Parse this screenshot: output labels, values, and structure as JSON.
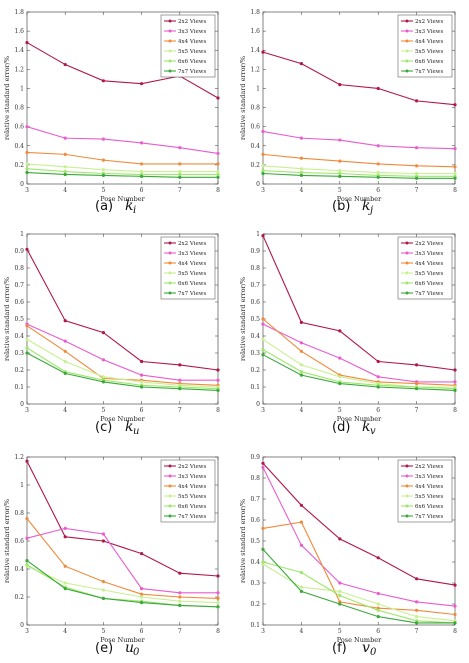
{
  "series_names": [
    "2x2 Views",
    "3x3 Views",
    "4x4 Views",
    "5x5 Views",
    "6x6 Views",
    "7x7 Views"
  ],
  "colors": [
    "#b0174a",
    "#e85cd0",
    "#f08a3a",
    "#c8f090",
    "#9be86a",
    "#3aa83a"
  ],
  "chart_data": [
    {
      "type": "line",
      "caption": "(a)",
      "caption_var": "k",
      "caption_sub": "i",
      "xlabel": "Pose Number",
      "ylabel": "relative standard error/%",
      "xlim": [
        3,
        8
      ],
      "ylim": [
        0,
        1.8
      ],
      "xticks": [
        3,
        4,
        5,
        6,
        7,
        8
      ],
      "yticks": [
        0,
        0.2,
        0.4,
        0.6,
        0.8,
        1,
        1.2,
        1.4,
        1.6,
        1.8
      ],
      "x": [
        3,
        4,
        5,
        6,
        7,
        8
      ],
      "series": [
        {
          "name": "2x2 Views",
          "values": [
            1.48,
            1.25,
            1.08,
            1.05,
            1.13,
            0.9
          ]
        },
        {
          "name": "3x3 Views",
          "values": [
            0.6,
            0.48,
            0.47,
            0.43,
            0.38,
            0.32
          ]
        },
        {
          "name": "4x4 Views",
          "values": [
            0.33,
            0.31,
            0.25,
            0.21,
            0.21,
            0.21
          ]
        },
        {
          "name": "5x5 Views",
          "values": [
            0.21,
            0.18,
            0.15,
            0.13,
            0.13,
            0.13
          ]
        },
        {
          "name": "6x6 Views",
          "values": [
            0.16,
            0.13,
            0.11,
            0.1,
            0.1,
            0.1
          ]
        },
        {
          "name": "7x7 Views",
          "values": [
            0.12,
            0.1,
            0.09,
            0.08,
            0.07,
            0.07
          ]
        }
      ]
    },
    {
      "type": "line",
      "caption": "(b)",
      "caption_var": "k",
      "caption_sub": "j",
      "xlabel": "Pose Number",
      "ylabel": "relative standard error/%",
      "xlim": [
        3,
        8
      ],
      "ylim": [
        0,
        1.8
      ],
      "xticks": [
        3,
        4,
        5,
        6,
        7,
        8
      ],
      "yticks": [
        0,
        0.2,
        0.4,
        0.6,
        0.8,
        1,
        1.2,
        1.4,
        1.6,
        1.8
      ],
      "x": [
        3,
        4,
        5,
        6,
        7,
        8
      ],
      "series": [
        {
          "name": "2x2 Views",
          "values": [
            1.38,
            1.26,
            1.04,
            1.0,
            0.87,
            0.83
          ]
        },
        {
          "name": "3x3 Views",
          "values": [
            0.55,
            0.48,
            0.46,
            0.4,
            0.38,
            0.37
          ]
        },
        {
          "name": "4x4 Views",
          "values": [
            0.31,
            0.27,
            0.24,
            0.21,
            0.19,
            0.18
          ]
        },
        {
          "name": "5x5 Views",
          "values": [
            0.19,
            0.16,
            0.14,
            0.12,
            0.11,
            0.11
          ]
        },
        {
          "name": "6x6 Views",
          "values": [
            0.14,
            0.12,
            0.11,
            0.09,
            0.08,
            0.08
          ]
        },
        {
          "name": "7x7 Views",
          "values": [
            0.11,
            0.09,
            0.08,
            0.07,
            0.06,
            0.06
          ]
        }
      ]
    },
    {
      "type": "line",
      "caption": "(c)",
      "caption_var": "k",
      "caption_sub": "u",
      "xlabel": "Pose Number",
      "ylabel": "relative standard error/%",
      "xlim": [
        3,
        8
      ],
      "ylim": [
        0,
        1
      ],
      "xticks": [
        3,
        4,
        5,
        6,
        7,
        8
      ],
      "yticks": [
        0,
        0.1,
        0.2,
        0.3,
        0.4,
        0.5,
        0.6,
        0.7,
        0.8,
        0.9,
        1
      ],
      "x": [
        3,
        4,
        5,
        6,
        7,
        8
      ],
      "series": [
        {
          "name": "2x2 Views",
          "values": [
            0.91,
            0.49,
            0.42,
            0.25,
            0.23,
            0.2
          ]
        },
        {
          "name": "3x3 Views",
          "values": [
            0.47,
            0.37,
            0.26,
            0.17,
            0.14,
            0.14
          ]
        },
        {
          "name": "4x4 Views",
          "values": [
            0.46,
            0.31,
            0.15,
            0.14,
            0.12,
            0.11
          ]
        },
        {
          "name": "5x5 Views",
          "values": [
            0.38,
            0.25,
            0.16,
            0.13,
            0.11,
            0.1
          ]
        },
        {
          "name": "6x6 Views",
          "values": [
            0.33,
            0.19,
            0.14,
            0.11,
            0.1,
            0.09
          ]
        },
        {
          "name": "7x7 Views",
          "values": [
            0.3,
            0.18,
            0.13,
            0.1,
            0.09,
            0.08
          ]
        }
      ]
    },
    {
      "type": "line",
      "caption": "(d)",
      "caption_var": "k",
      "caption_sub": "v",
      "xlabel": "Pose Number",
      "ylabel": "relative standard error/%",
      "xlim": [
        3,
        8
      ],
      "ylim": [
        0,
        1
      ],
      "xticks": [
        3,
        4,
        5,
        6,
        7,
        8
      ],
      "yticks": [
        0,
        0.1,
        0.2,
        0.3,
        0.4,
        0.5,
        0.6,
        0.7,
        0.8,
        0.9,
        1
      ],
      "x": [
        3,
        4,
        5,
        6,
        7,
        8
      ],
      "series": [
        {
          "name": "2x2 Views",
          "values": [
            0.99,
            0.48,
            0.43,
            0.25,
            0.23,
            0.2
          ]
        },
        {
          "name": "3x3 Views",
          "values": [
            0.47,
            0.36,
            0.27,
            0.16,
            0.13,
            0.13
          ]
        },
        {
          "name": "4x4 Views",
          "values": [
            0.5,
            0.31,
            0.17,
            0.13,
            0.12,
            0.11
          ]
        },
        {
          "name": "5x5 Views",
          "values": [
            0.38,
            0.23,
            0.16,
            0.12,
            0.1,
            0.1
          ]
        },
        {
          "name": "6x6 Views",
          "values": [
            0.32,
            0.19,
            0.13,
            0.11,
            0.1,
            0.09
          ]
        },
        {
          "name": "7x7 Views",
          "values": [
            0.29,
            0.17,
            0.12,
            0.1,
            0.09,
            0.08
          ]
        }
      ]
    },
    {
      "type": "line",
      "caption": "(e)",
      "caption_var": "u",
      "caption_sub": "0",
      "xlabel": "Pose Number",
      "ylabel": "relative standard error/%",
      "xlim": [
        3,
        8
      ],
      "ylim": [
        0,
        1.2
      ],
      "xticks": [
        3,
        4,
        5,
        6,
        7,
        8
      ],
      "yticks": [
        0,
        0.2,
        0.4,
        0.6,
        0.8,
        1,
        1.2
      ],
      "x": [
        3,
        4,
        5,
        6,
        7,
        8
      ],
      "series": [
        {
          "name": "2x2 Views",
          "values": [
            1.17,
            0.63,
            0.6,
            0.51,
            0.37,
            0.35
          ]
        },
        {
          "name": "3x3 Views",
          "values": [
            0.62,
            0.69,
            0.65,
            0.26,
            0.23,
            0.23
          ]
        },
        {
          "name": "4x4 Views",
          "values": [
            0.76,
            0.42,
            0.31,
            0.22,
            0.2,
            0.19
          ]
        },
        {
          "name": "5x5 Views",
          "values": [
            0.42,
            0.3,
            0.25,
            0.2,
            0.17,
            0.16
          ]
        },
        {
          "name": "6x6 Views",
          "values": [
            0.43,
            0.27,
            0.19,
            0.17,
            0.14,
            0.13
          ]
        },
        {
          "name": "7x7 Views",
          "values": [
            0.46,
            0.26,
            0.19,
            0.16,
            0.14,
            0.13
          ]
        }
      ]
    },
    {
      "type": "line",
      "caption": "(f)",
      "caption_var": "v",
      "caption_sub": "0",
      "xlabel": "Pose Number",
      "ylabel": "relative standard error/%",
      "xlim": [
        3,
        8
      ],
      "ylim": [
        0.1,
        0.9
      ],
      "xticks": [
        3,
        4,
        5,
        6,
        7,
        8
      ],
      "yticks": [
        0.1,
        0.2,
        0.3,
        0.4,
        0.5,
        0.6,
        0.7,
        0.8,
        0.9
      ],
      "x": [
        3,
        4,
        5,
        6,
        7,
        8
      ],
      "series": [
        {
          "name": "2x2 Views",
          "values": [
            0.87,
            0.67,
            0.51,
            0.42,
            0.32,
            0.29
          ]
        },
        {
          "name": "3x3 Views",
          "values": [
            0.85,
            0.48,
            0.3,
            0.25,
            0.21,
            0.19
          ]
        },
        {
          "name": "4x4 Views",
          "values": [
            0.56,
            0.59,
            0.21,
            0.18,
            0.17,
            0.15
          ]
        },
        {
          "name": "5x5 Views",
          "values": [
            0.39,
            0.28,
            0.26,
            0.2,
            0.14,
            0.12
          ]
        },
        {
          "name": "6x6 Views",
          "values": [
            0.4,
            0.35,
            0.24,
            0.17,
            0.12,
            0.11
          ]
        },
        {
          "name": "7x7 Views",
          "values": [
            0.46,
            0.26,
            0.2,
            0.14,
            0.11,
            0.11
          ]
        }
      ]
    }
  ]
}
